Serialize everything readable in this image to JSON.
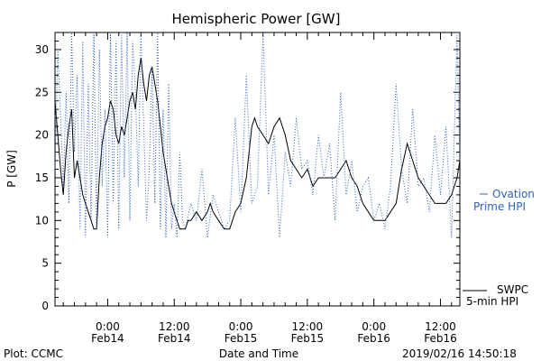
{
  "chart_data": {
    "type": "line",
    "title": "Hemispheric Power [GW]",
    "xlabel": "Date and Time",
    "ylabel": "P [GW]",
    "ylim": [
      0,
      32
    ],
    "y_ticks": [
      0,
      5,
      10,
      15,
      20,
      25,
      30
    ],
    "x_ticks": [
      {
        "top": "0:00",
        "bottom": "Feb14",
        "hour": 0
      },
      {
        "top": "12:00",
        "bottom": "Feb14",
        "hour": 12
      },
      {
        "top": "0:00",
        "bottom": "Feb15",
        "hour": 24
      },
      {
        "top": "12:00",
        "bottom": "Feb15",
        "hour": 36
      },
      {
        "top": "0:00",
        "bottom": "Feb16",
        "hour": 48
      },
      {
        "top": "12:00",
        "bottom": "Feb16",
        "hour": 60
      }
    ],
    "xlim_hours": [
      -9.5,
      63.5
    ],
    "series": [
      {
        "name": "SWPC 5-min HPI",
        "legend_lines": [
          "SWPC",
          "5-min HPI"
        ],
        "color": "#000000",
        "style": "solid",
        "x_hours": [
          -9.5,
          -9.0,
          -8.5,
          -8.0,
          -7.5,
          -7.0,
          -6.5,
          -6.0,
          -5.5,
          -5.0,
          -4.5,
          -4.0,
          -3.5,
          -3.0,
          -2.5,
          -2.0,
          -1.5,
          -1.0,
          -0.5,
          0.0,
          0.5,
          1.0,
          1.5,
          2.0,
          2.5,
          3.0,
          3.5,
          4.0,
          4.5,
          5.0,
          5.5,
          6.0,
          6.5,
          7.0,
          7.5,
          8.0,
          8.5,
          9.0,
          9.5,
          10.0,
          10.5,
          11.0,
          11.5,
          12.0,
          12.5,
          13.0,
          13.5,
          14.0,
          14.5,
          15.0,
          16.0,
          17.0,
          18.0,
          18.5,
          19.0,
          20.0,
          21.0,
          22.0,
          23.0,
          24.0,
          25.0,
          26.0,
          26.5,
          27.0,
          28.0,
          29.0,
          30.0,
          31.0,
          32.0,
          33.0,
          34.0,
          35.0,
          36.0,
          37.0,
          38.0,
          39.0,
          40.0,
          41.0,
          42.0,
          43.0,
          44.0,
          45.0,
          46.0,
          47.0,
          48.0,
          49.0,
          50.0,
          51.0,
          52.0,
          53.0,
          54.0,
          55.0,
          56.0,
          57.0,
          58.0,
          59.0,
          60.0,
          61.0,
          62.0,
          63.0,
          63.5
        ],
        "values": [
          24,
          20,
          16,
          13,
          18,
          21,
          23,
          15,
          17,
          15,
          13,
          12,
          11,
          10,
          9,
          9,
          15,
          19,
          21,
          22,
          24,
          23,
          20,
          19,
          21,
          20,
          22,
          24,
          25,
          23,
          27,
          29,
          26,
          24,
          27,
          28,
          26,
          24,
          21,
          18,
          16,
          14,
          12,
          11,
          10,
          9,
          9,
          9,
          10,
          10,
          11,
          10,
          11,
          12,
          11,
          10,
          9,
          9,
          11,
          12,
          15,
          21,
          22,
          21,
          20,
          19,
          21,
          22,
          20,
          17,
          16,
          15,
          16,
          14,
          15,
          15,
          15,
          15,
          16,
          17,
          15,
          14,
          12,
          11,
          10,
          10,
          10,
          11,
          12,
          16,
          19,
          17,
          15,
          14,
          13,
          12,
          12,
          12,
          13,
          15,
          17
        ]
      },
      {
        "name": "Ovation Prime HPI",
        "legend_lines": [
          "Ovation",
          "Prime HPI"
        ],
        "color": "#3060c0",
        "style": "dotted",
        "x_hours": [
          -9.5,
          -9.0,
          -8.5,
          -8.0,
          -7.5,
          -7.0,
          -6.5,
          -6.0,
          -5.5,
          -5.0,
          -4.5,
          -4.0,
          -3.5,
          -3.0,
          -2.5,
          -2.0,
          -1.5,
          -1.0,
          -0.5,
          0.0,
          0.5,
          1.0,
          1.5,
          2.0,
          2.5,
          3.0,
          3.5,
          4.0,
          4.5,
          5.0,
          5.5,
          6.0,
          6.5,
          7.0,
          7.5,
          8.0,
          8.5,
          9.0,
          9.5,
          10.0,
          10.5,
          11.0,
          11.5,
          12.0,
          12.5,
          13.0,
          13.5,
          14.0,
          15.0,
          16.0,
          17.0,
          18.0,
          19.0,
          20.0,
          21.0,
          22.0,
          23.0,
          24.0,
          25.0,
          26.0,
          27.0,
          28.0,
          29.0,
          30.0,
          31.0,
          32.0,
          33.0,
          34.0,
          35.0,
          36.0,
          37.0,
          38.0,
          39.0,
          40.0,
          41.0,
          42.0,
          43.0,
          44.0,
          45.0,
          46.0,
          47.0,
          48.0,
          49.0,
          50.0,
          51.0,
          52.0,
          53.0,
          54.0,
          55.0,
          56.0,
          57.0,
          58.0,
          59.0,
          60.0,
          61.0,
          62.0,
          63.0,
          63.5
        ],
        "values": [
          16,
          30,
          22,
          14,
          25,
          12,
          32,
          18,
          27,
          9,
          31,
          8,
          26,
          10,
          32,
          9,
          30,
          14,
          23,
          8,
          32,
          12,
          31,
          9,
          32,
          15,
          32,
          10,
          31,
          25,
          14,
          32,
          21,
          10,
          16,
          28,
          12,
          32,
          9,
          23,
          8,
          26,
          9,
          12,
          8,
          18,
          10,
          9,
          12,
          10,
          16,
          8,
          13,
          11,
          9,
          10,
          22,
          11,
          27,
          12,
          14,
          32,
          13,
          20,
          8,
          18,
          14,
          22,
          16,
          17,
          13,
          20,
          15,
          19,
          10,
          25,
          13,
          17,
          11,
          14,
          15,
          10,
          12,
          9,
          14,
          26,
          16,
          12,
          23,
          14,
          15,
          11,
          20,
          13,
          21,
          8,
          32,
          17
        ]
      }
    ],
    "footer": {
      "left": "Plot: CCMC",
      "right": "2019/02/16 14:50:18"
    }
  }
}
